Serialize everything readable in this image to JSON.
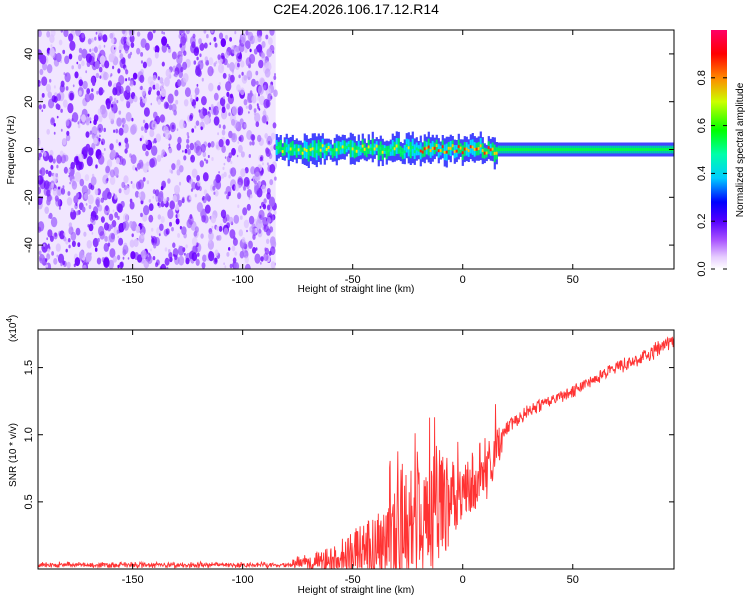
{
  "chart_data": [
    {
      "type": "heatmap",
      "title": "C2E4.2026.106.17.12.R14",
      "xlabel": "Height of straight line (km)",
      "ylabel": "Frequency (Hz)",
      "xlim": [
        -193,
        96
      ],
      "ylim": [
        -50,
        50
      ],
      "xticks": [
        -150,
        -100,
        -50,
        0,
        50
      ],
      "xtick_labels": [
        "-150",
        "-100",
        "-50",
        "0",
        "50"
      ],
      "yticks": [
        -40,
        -20,
        0,
        20,
        40
      ],
      "ytick_labels": [
        "-40",
        "-20",
        "0",
        "20",
        "40"
      ],
      "noise_region_end_km": -85,
      "colorbar": {
        "label": "Normalized spectral amplitude",
        "range": [
          0,
          1
        ],
        "ticks": [
          0.0,
          0.2,
          0.4,
          0.6,
          0.8
        ],
        "tick_labels": [
          "0.0",
          "0.2",
          "0.4",
          "0.6",
          "0.8"
        ],
        "colors": [
          "#ffffff",
          "#cc99ff",
          "#8800ff",
          "#0000ff",
          "#00ffff",
          "#00ff00",
          "#ffff00",
          "#ff0000",
          "#ff0066"
        ]
      }
    },
    {
      "type": "line",
      "title": "",
      "xlabel": "Height of straight line (km)",
      "ylabel": "SNR (10 * v/v)",
      "y_multiplier_label": "(x10",
      "y_multiplier_exp": "4",
      "y_multiplier_close": ")",
      "xlim": [
        -193,
        96
      ],
      "ylim": [
        0,
        1.78
      ],
      "xticks": [
        -150,
        -100,
        -50,
        0,
        50
      ],
      "xtick_labels": [
        "-150",
        "-100",
        "-50",
        "0",
        "50"
      ],
      "yticks": [
        0.5,
        1.0,
        1.5
      ],
      "ytick_labels": [
        "0.5",
        "1.0",
        "1.5"
      ],
      "line_color": "#ff3333",
      "envelope": {
        "x": [
          -193,
          -80,
          -75,
          -60,
          -50,
          -40,
          -30,
          -20,
          -10,
          0,
          10,
          20,
          30,
          40,
          50,
          60,
          70,
          80,
          90,
          96
        ],
        "base": [
          0.03,
          0.03,
          0.05,
          0.07,
          0.1,
          0.15,
          0.22,
          0.28,
          0.45,
          0.58,
          0.72,
          1.05,
          1.18,
          1.25,
          1.32,
          1.42,
          1.5,
          1.56,
          1.65,
          1.7
        ],
        "spike": [
          0.01,
          0.01,
          0.04,
          0.1,
          0.18,
          0.28,
          0.4,
          0.55,
          0.4,
          0.2,
          0.3,
          0.05,
          0.04,
          0.04,
          0.04,
          0.04,
          0.04,
          0.05,
          0.05,
          0.05
        ]
      }
    }
  ]
}
